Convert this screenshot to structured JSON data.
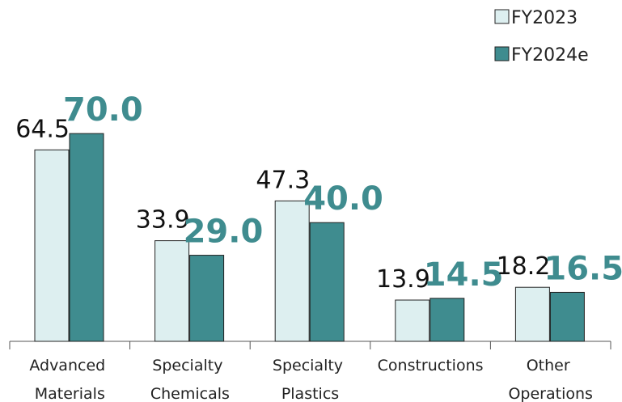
{
  "chart_data": {
    "type": "bar",
    "categories": [
      "Advanced Materials",
      "Specialty Chemicals",
      "Specialty Plastics",
      "Constructions",
      "Other Operations"
    ],
    "series": [
      {
        "name": "FY2023",
        "color": "#ddeff0",
        "values": [
          64.5,
          33.9,
          47.3,
          13.9,
          18.2
        ],
        "value_labels": [
          "64.5",
          "33.9",
          "47.3",
          "13.9",
          "18.2"
        ]
      },
      {
        "name": "FY2024e",
        "color": "#3f8c8f",
        "values": [
          70.0,
          29.0,
          40.0,
          14.5,
          16.5
        ],
        "value_labels": [
          "70.0",
          "29.0",
          "40.0",
          "14.5",
          "16.5"
        ]
      }
    ],
    "legend": "top-right"
  }
}
